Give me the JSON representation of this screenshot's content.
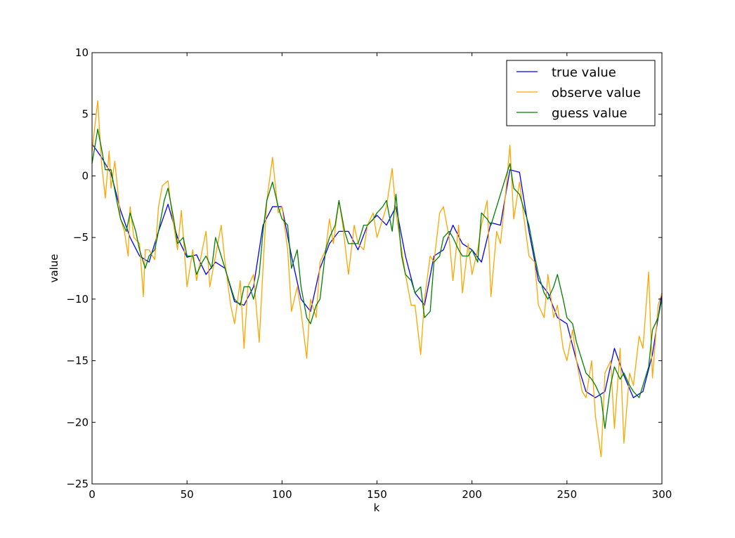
{
  "chart_data": {
    "type": "line",
    "title": "",
    "xlabel": "k",
    "ylabel": "value",
    "xlim": [
      0,
      300
    ],
    "ylim": [
      -25,
      10
    ],
    "xticks": [
      0,
      50,
      100,
      150,
      200,
      250,
      300
    ],
    "yticks": [
      -25,
      -20,
      -15,
      -10,
      -5,
      0,
      5,
      10
    ],
    "xtick_labels": [
      "0",
      "50",
      "100",
      "150",
      "200",
      "250",
      "300"
    ],
    "ytick_labels": [
      "−25",
      "−20",
      "−15",
      "−10",
      "−5",
      "0",
      "5",
      "10"
    ],
    "grid": false,
    "legend_position": "top-right",
    "series": [
      {
        "name": "true value",
        "color": "#0000ff",
        "x": [
          0,
          5,
          10,
          15,
          20,
          25,
          30,
          35,
          40,
          45,
          50,
          55,
          60,
          65,
          70,
          75,
          80,
          85,
          90,
          95,
          100,
          105,
          110,
          115,
          120,
          125,
          130,
          135,
          140,
          145,
          150,
          155,
          160,
          165,
          170,
          175,
          180,
          185,
          190,
          195,
          200,
          205,
          210,
          215,
          220,
          225,
          230,
          235,
          240,
          245,
          250,
          255,
          260,
          265,
          270,
          275,
          280,
          285,
          290,
          295,
          300
        ],
        "values": [
          2.6,
          1.5,
          0.2,
          -2.8,
          -5.0,
          -6.5,
          -7.0,
          -4.5,
          -2.3,
          -5.0,
          -6.6,
          -6.4,
          -8.0,
          -7.0,
          -7.5,
          -10.2,
          -10.5,
          -9.0,
          -4.0,
          -2.5,
          -2.5,
          -6.5,
          -10.0,
          -11.0,
          -7.5,
          -5.5,
          -4.5,
          -4.5,
          -6.0,
          -4.0,
          -3.2,
          -4.0,
          -2.5,
          -6.5,
          -9.5,
          -10.5,
          -6.5,
          -6.0,
          -4.0,
          -5.5,
          -6.0,
          -7.0,
          -3.8,
          -4.0,
          0.5,
          0.3,
          -4.5,
          -8.5,
          -9.5,
          -11.5,
          -12.0,
          -15.0,
          -17.5,
          -18.0,
          -17.5,
          -14.0,
          -16.2,
          -18.0,
          -17.5,
          -14.5,
          -9.5
        ]
      },
      {
        "name": "observe value",
        "color": "#ffa500",
        "x": [
          0,
          3,
          5,
          7,
          9,
          10,
          12,
          15,
          17,
          19,
          20,
          22,
          25,
          27,
          28,
          30,
          33,
          35,
          37,
          40,
          42,
          45,
          47,
          50,
          53,
          55,
          58,
          60,
          62,
          65,
          68,
          70,
          73,
          75,
          78,
          80,
          82,
          85,
          88,
          90,
          92,
          95,
          98,
          100,
          103,
          105,
          108,
          110,
          113,
          115,
          118,
          120,
          123,
          125,
          127,
          130,
          132,
          135,
          138,
          140,
          143,
          145,
          148,
          150,
          153,
          155,
          158,
          160,
          163,
          165,
          168,
          170,
          173,
          175,
          178,
          180,
          183,
          185,
          188,
          190,
          193,
          195,
          198,
          200,
          203,
          205,
          208,
          210,
          213,
          215,
          218,
          220,
          222,
          225,
          227,
          230,
          233,
          235,
          238,
          240,
          243,
          245,
          248,
          250,
          253,
          255,
          258,
          260,
          263,
          265,
          268,
          270,
          273,
          275,
          278,
          280,
          283,
          285,
          288,
          290,
          293,
          295,
          298,
          300
        ],
        "values": [
          2.0,
          6.1,
          1.0,
          -1.8,
          2.0,
          -1.0,
          1.2,
          -3.5,
          -4.5,
          -6.5,
          -2.5,
          -5.0,
          -5.5,
          -9.8,
          -6.0,
          -6.0,
          -6.8,
          -2.5,
          -0.8,
          -0.4,
          -3.0,
          -6.0,
          -2.8,
          -9.0,
          -6.0,
          -8.5,
          -6.0,
          -4.5,
          -9.0,
          -6.5,
          -4.0,
          -7.0,
          -10.5,
          -12.0,
          -8.5,
          -14.0,
          -9.0,
          -8.0,
          -13.5,
          -7.5,
          -2.0,
          1.5,
          -3.0,
          -2.5,
          -6.0,
          -11.0,
          -9.0,
          -11.0,
          -14.8,
          -10.0,
          -11.5,
          -7.0,
          -6.0,
          -3.5,
          -5.5,
          -2.0,
          -4.0,
          -8.0,
          -4.0,
          -5.5,
          -6.0,
          -4.0,
          -3.0,
          -5.0,
          -3.5,
          -2.5,
          0.6,
          -3.0,
          -6.0,
          -8.0,
          -10.5,
          -10.5,
          -14.5,
          -10.0,
          -6.5,
          -7.0,
          -3.0,
          -2.5,
          -5.0,
          -8.5,
          -4.0,
          -9.5,
          -5.5,
          -8.0,
          -6.0,
          -4.0,
          -2.0,
          -9.8,
          -4.5,
          -5.5,
          -1.0,
          2.5,
          -3.5,
          -0.5,
          -3.0,
          -6.5,
          -7.0,
          -10.5,
          -11.5,
          -8.0,
          -11.5,
          -10.5,
          -14.0,
          -15.0,
          -12.5,
          -15.0,
          -17.5,
          -18.0,
          -15.0,
          -19.5,
          -22.8,
          -16.0,
          -15.0,
          -20.5,
          -14.0,
          -21.7,
          -16.0,
          -17.0,
          -13.0,
          -14.0,
          -7.8,
          -16.4,
          -10.5,
          -9.5
        ]
      },
      {
        "name": "guess value",
        "color": "#008000",
        "x": [
          0,
          3,
          5,
          7,
          10,
          13,
          15,
          18,
          20,
          23,
          25,
          28,
          30,
          33,
          35,
          38,
          40,
          43,
          45,
          48,
          50,
          53,
          55,
          58,
          60,
          63,
          65,
          68,
          70,
          73,
          75,
          78,
          80,
          83,
          85,
          88,
          90,
          92,
          95,
          98,
          100,
          103,
          105,
          108,
          110,
          113,
          115,
          118,
          120,
          123,
          125,
          128,
          130,
          133,
          135,
          138,
          140,
          143,
          145,
          148,
          150,
          153,
          155,
          158,
          160,
          163,
          165,
          168,
          170,
          173,
          175,
          178,
          180,
          183,
          185,
          188,
          190,
          193,
          195,
          198,
          200,
          203,
          205,
          208,
          210,
          213,
          215,
          218,
          220,
          222,
          225,
          228,
          230,
          233,
          235,
          238,
          240,
          243,
          245,
          248,
          250,
          253,
          255,
          258,
          260,
          263,
          265,
          268,
          270,
          273,
          275,
          278,
          280,
          283,
          285,
          288,
          290,
          293,
          295,
          298,
          300
        ],
        "values": [
          1.0,
          3.8,
          2.2,
          0.5,
          0.5,
          -2.0,
          -3.5,
          -4.5,
          -3.0,
          -4.5,
          -6.0,
          -7.5,
          -6.5,
          -6.0,
          -4.5,
          -2.0,
          -1.0,
          -3.5,
          -5.5,
          -5.0,
          -6.5,
          -6.5,
          -8.0,
          -7.0,
          -6.5,
          -7.5,
          -5.0,
          -6.5,
          -7.5,
          -9.0,
          -10.0,
          -10.5,
          -9.0,
          -9.0,
          -10.0,
          -8.0,
          -4.5,
          -2.0,
          -0.5,
          -2.5,
          -3.5,
          -4.0,
          -7.5,
          -6.0,
          -9.0,
          -11.5,
          -12.0,
          -10.5,
          -10.0,
          -6.0,
          -5.0,
          -4.0,
          -2.0,
          -4.5,
          -5.5,
          -5.5,
          -5.5,
          -4.0,
          -4.0,
          -3.5,
          -3.0,
          -2.5,
          -2.0,
          -4.5,
          -1.5,
          -6.5,
          -8.0,
          -8.5,
          -9.5,
          -9.0,
          -11.5,
          -11.0,
          -7.0,
          -6.5,
          -5.0,
          -4.5,
          -5.0,
          -6.0,
          -6.5,
          -6.5,
          -6.0,
          -7.0,
          -3.0,
          -3.5,
          -4.0,
          -2.5,
          -1.5,
          0.0,
          1.0,
          -1.0,
          -1.5,
          -3.0,
          -4.0,
          -6.5,
          -8.0,
          -9.5,
          -10.0,
          -9.0,
          -8.0,
          -10.0,
          -11.5,
          -12.0,
          -13.5,
          -15.0,
          -16.0,
          -16.5,
          -17.0,
          -18.0,
          -20.5,
          -17.0,
          -15.5,
          -16.5,
          -16.0,
          -17.0,
          -17.5,
          -18.0,
          -17.0,
          -15.5,
          -12.5,
          -11.5,
          -10.0
        ]
      }
    ]
  }
}
